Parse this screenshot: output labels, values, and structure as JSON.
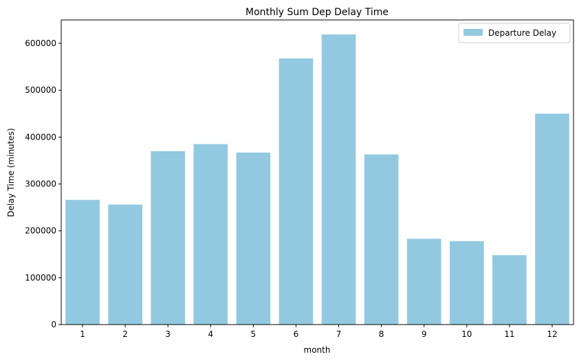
{
  "chart_data": {
    "type": "bar",
    "title": "Monthly Sum Dep Delay Time",
    "xlabel": "month",
    "ylabel": "Delay Time (minutes)",
    "categories": [
      "1",
      "2",
      "3",
      "4",
      "5",
      "6",
      "7",
      "8",
      "9",
      "10",
      "11",
      "12"
    ],
    "series": [
      {
        "name": "Departure Delay",
        "values": [
          266000,
          256000,
          370000,
          385000,
          367000,
          568000,
          619000,
          363000,
          183000,
          178000,
          148000,
          450000
        ]
      }
    ],
    "ylim": [
      0,
      650000
    ],
    "yticks": [
      0,
      100000,
      200000,
      300000,
      400000,
      500000,
      600000
    ],
    "ytick_labels": [
      "0",
      "100000",
      "200000",
      "300000",
      "400000",
      "500000",
      "600000"
    ],
    "grid": false,
    "legend_position": "top-right",
    "bar_color": "#92c9e0"
  }
}
